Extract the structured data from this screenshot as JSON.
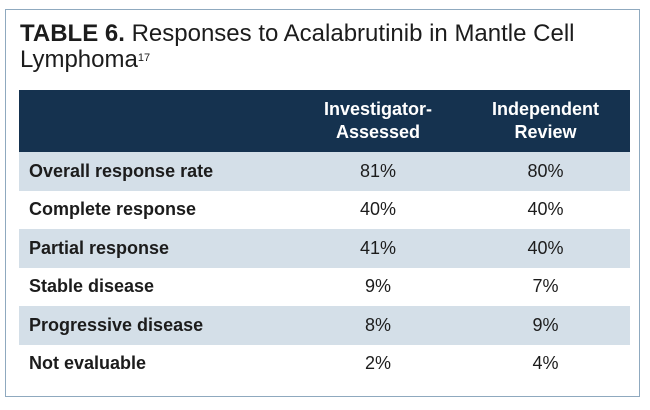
{
  "title": {
    "label": "TABLE 6.",
    "text": " Responses to Acalabrutinib in Mantle Cell Lymphoma",
    "superscript": "17"
  },
  "table": {
    "headers": [
      "",
      "Investigator-\nAssessed",
      "Independent\nReview"
    ],
    "header_lines": [
      [
        "Investigator-",
        "Assessed"
      ],
      [
        "Independent",
        "Review"
      ]
    ],
    "rows": [
      [
        "Overall response rate",
        "81%",
        "80%"
      ],
      [
        "Complete response",
        "40%",
        "40%"
      ],
      [
        "Partial response",
        "41%",
        "40%"
      ],
      [
        "Stable disease",
        "9%",
        "7%"
      ],
      [
        "Progressive disease",
        "8%",
        "9%"
      ],
      [
        "Not evaluable",
        "2%",
        "4%"
      ]
    ]
  },
  "colors": {
    "header_bg": "#15324f",
    "row_shade": "#d4dfe8",
    "border": "#8fa9bf"
  }
}
